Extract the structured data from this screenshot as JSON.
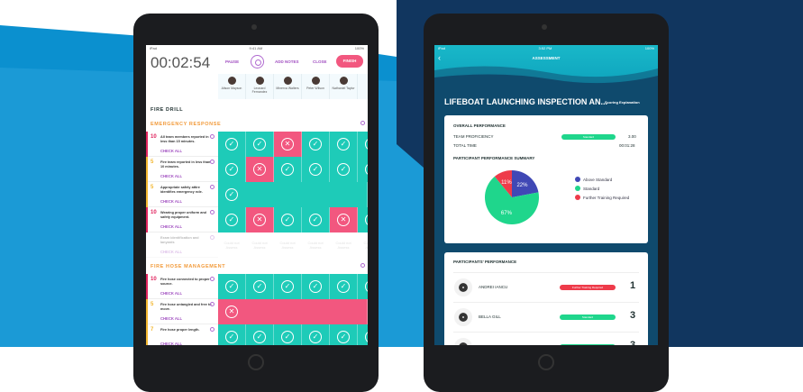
{
  "left": {
    "status": {
      "carrier": "iPad",
      "time": "9:41 AM",
      "battery": "100%"
    },
    "timer": "00:02:54",
    "pause": "PAUSE",
    "add_notes": "ADD NOTES",
    "close": "CLOSE",
    "finish": "FINISH",
    "participants": [
      "Alison Mayson",
      "Leonard Fernandez",
      "Minerva Walters",
      "Peter Wilson",
      "Nathaniel Taylor",
      "A..."
    ],
    "title": "FIRE DRILL",
    "sections": [
      {
        "name": "EMERGENCY RESPONSE",
        "rows": [
          {
            "score": "10",
            "text": "All team members reported in less than 15 minutes.",
            "check_all": "CHECK ALL",
            "color": "#e0245e",
            "cells": [
              "c",
              "c",
              "x",
              "c",
              "c",
              "c"
            ]
          },
          {
            "score": "5",
            "text": "Fire team reported in less than 10 minutes.",
            "check_all": "CHECK ALL",
            "color": "#f2b630",
            "cells": [
              "c",
              "x",
              "c",
              "c",
              "c",
              "c"
            ]
          },
          {
            "score": "5",
            "text": "Appropriate safety attire identifies emergency role.",
            "check_all": "CHECK ALL",
            "color": "#f2b630",
            "cells": [
              "C"
            ]
          },
          {
            "score": "10",
            "text": "Wearing proper uniform and safety equipment.",
            "check_all": "CHECK ALL",
            "color": "#e0245e",
            "cells": [
              "c",
              "x",
              "c",
              "c",
              "x",
              "c"
            ]
          },
          {
            "score": "",
            "text": "Exam identification and lanyards",
            "check_all": "CHECK ALL",
            "color": "",
            "cells": [
              "n",
              "n",
              "n",
              "n",
              "n",
              "n"
            ]
          }
        ]
      },
      {
        "name": "FIRE HOSE MANAGEMENT",
        "rows": [
          {
            "score": "10",
            "text": "Fire hose connected to proper source.",
            "check_all": "CHECK ALL",
            "color": "#e0245e",
            "cells": [
              "c",
              "c",
              "c",
              "c",
              "c",
              "c"
            ]
          },
          {
            "score": "5",
            "text": "Fire hose untangled and free to move.",
            "check_all": "CHECK ALL",
            "color": "#f2b630",
            "cells": [
              "X"
            ]
          },
          {
            "score": "7",
            "text": "Fire hose proper length.",
            "check_all": "CHECK ALL",
            "color": "#f2b630",
            "cells": [
              "c",
              "c",
              "c",
              "c",
              "c",
              "c"
            ]
          }
        ]
      }
    ],
    "could_not_assess": "Could not Assess",
    "colors": {
      "pass": "#1ecbb8",
      "fail": "#f2577f"
    }
  },
  "right": {
    "status": {
      "carrier": "iPad",
      "time": "3:52 PM",
      "battery": "100%"
    },
    "header": "ASSESSMENT",
    "title": "LIFEBOAT LAUNCHING INSPECTION AN...",
    "scoring": "Scoring Explanation",
    "overall": {
      "heading": "OVERALL PERFORMANCE",
      "team_label": "TEAM PROFICIENCY",
      "team_badge": "Standard",
      "team_value": "3.00",
      "time_label": "TOTAL TIME",
      "time_value": "00:01:28"
    },
    "summary_heading": "PARTICIPANT PERFORMANCE SUMMARY",
    "chart_data": {
      "type": "pie",
      "slices": [
        {
          "label": "Above Standard",
          "value": 22,
          "color": "#4048b5"
        },
        {
          "label": "Standard",
          "value": 67,
          "color": "#1fd68c"
        },
        {
          "label": "Further Training Required",
          "value": 11,
          "color": "#ee3b4a"
        }
      ]
    },
    "participants_heading": "PARTICIPANTS' PERFORMANCE",
    "participants": [
      {
        "name": "ANDREI IANCU",
        "badge": "Further Training Required",
        "color": "#ee3b4a",
        "score": "1"
      },
      {
        "name": "BELLA GILL",
        "badge": "Standard",
        "color": "#1fd68c",
        "score": "3"
      },
      {
        "name": "DAVE BOWIE",
        "badge": "Standard",
        "color": "#1fd68c",
        "score": "3"
      }
    ]
  }
}
